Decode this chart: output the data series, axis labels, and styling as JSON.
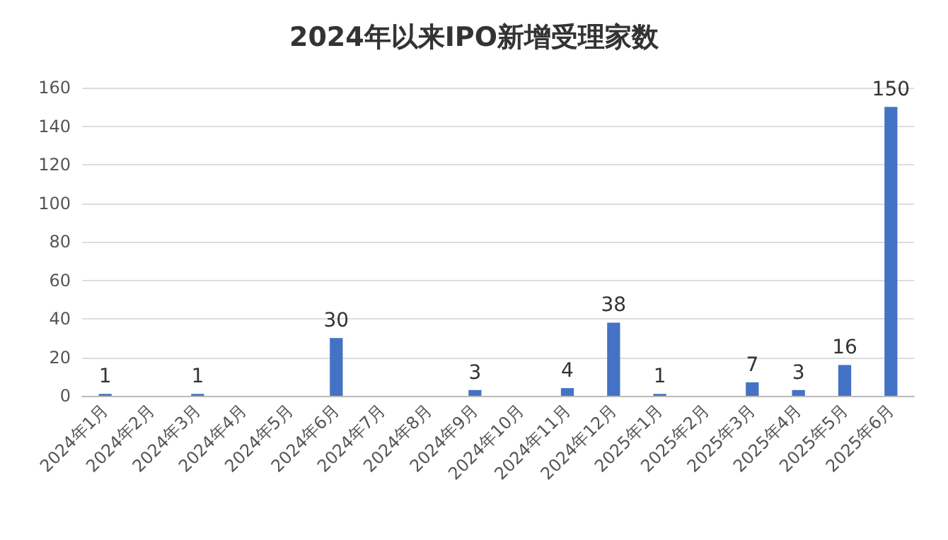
{
  "chart_data": {
    "type": "bar",
    "title": "2024年以来IPO新增受理家数",
    "categories": [
      "2024年1月",
      "2024年2月",
      "2024年3月",
      "2024年4月",
      "2024年5月",
      "2024年6月",
      "2024年7月",
      "2024年8月",
      "2024年9月",
      "2024年10月",
      "2024年11月",
      "2024年12月",
      "2025年1月",
      "2025年2月",
      "2025年3月",
      "2025年4月",
      "2025年5月",
      "2025年6月"
    ],
    "values": [
      1,
      0,
      1,
      0,
      0,
      30,
      0,
      0,
      3,
      0,
      4,
      38,
      1,
      0,
      7,
      3,
      16,
      150
    ],
    "value_labels": [
      "1",
      null,
      "1",
      null,
      null,
      "30",
      null,
      null,
      "3",
      null,
      "4",
      "38",
      "1",
      null,
      "7",
      "3",
      "16",
      "150"
    ],
    "color": "#4472c4",
    "ylim": [
      0,
      160
    ],
    "yticks": [
      0,
      20,
      40,
      60,
      80,
      100,
      120,
      140,
      160
    ],
    "grid": "y",
    "legend": false
  }
}
